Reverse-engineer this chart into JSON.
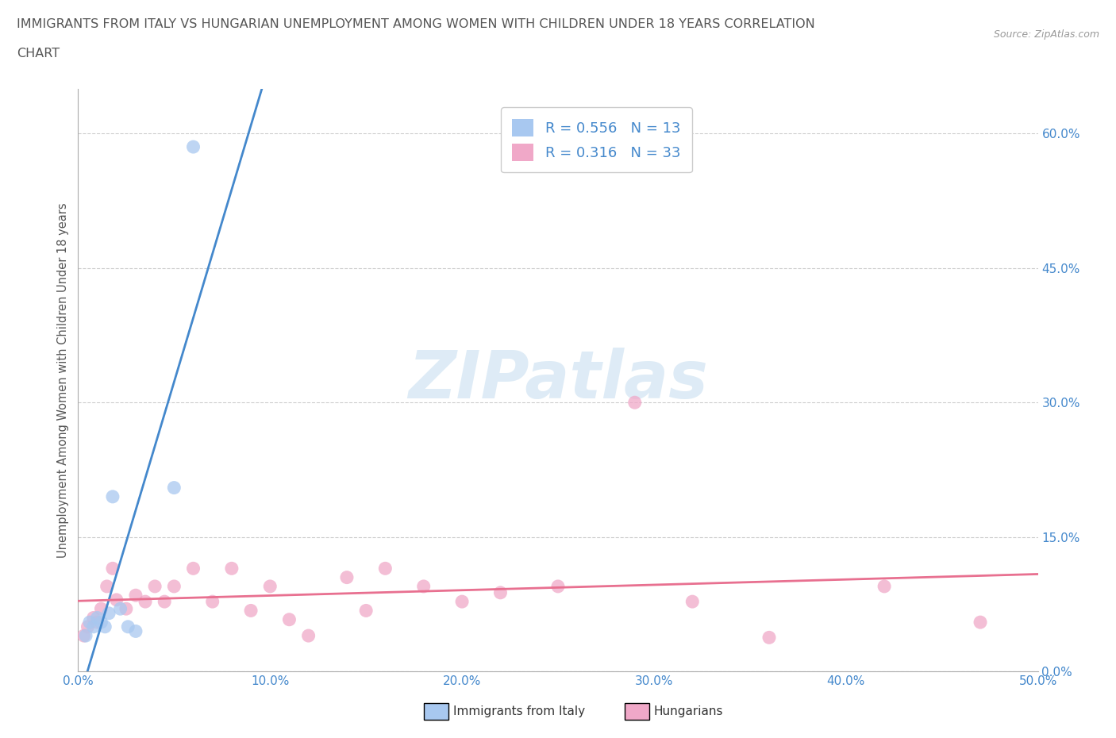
{
  "title_line1": "IMMIGRANTS FROM ITALY VS HUNGARIAN UNEMPLOYMENT AMONG WOMEN WITH CHILDREN UNDER 18 YEARS CORRELATION",
  "title_line2": "CHART",
  "source": "Source: ZipAtlas.com",
  "ylabel": "Unemployment Among Women with Children Under 18 years",
  "xlabel_italy": "Immigrants from Italy",
  "xlabel_hungary": "Hungarians",
  "xlim": [
    0.0,
    0.5
  ],
  "ylim": [
    0.0,
    0.65
  ],
  "xticks": [
    0.0,
    0.1,
    0.2,
    0.3,
    0.4,
    0.5
  ],
  "yticks": [
    0.0,
    0.15,
    0.3,
    0.45,
    0.6
  ],
  "ytick_labels": [
    "0.0%",
    "15.0%",
    "30.0%",
    "45.0%",
    "60.0%"
  ],
  "xtick_labels": [
    "0.0%",
    "10.0%",
    "20.0%",
    "30.0%",
    "40.0%",
    "50.0%"
  ],
  "italy_color": "#a8c8f0",
  "hungary_color": "#f0a8c8",
  "italy_R": 0.556,
  "italy_N": 13,
  "hungary_R": 0.316,
  "hungary_N": 33,
  "background_color": "#ffffff",
  "grid_color": "#cccccc",
  "italy_scatter_x": [
    0.004,
    0.006,
    0.008,
    0.01,
    0.012,
    0.014,
    0.016,
    0.018,
    0.022,
    0.026,
    0.03,
    0.05,
    0.06
  ],
  "italy_scatter_y": [
    0.04,
    0.055,
    0.05,
    0.06,
    0.055,
    0.05,
    0.065,
    0.195,
    0.07,
    0.05,
    0.045,
    0.205,
    0.585
  ],
  "hungary_scatter_x": [
    0.003,
    0.005,
    0.008,
    0.01,
    0.012,
    0.015,
    0.018,
    0.02,
    0.025,
    0.03,
    0.035,
    0.04,
    0.045,
    0.05,
    0.06,
    0.07,
    0.08,
    0.09,
    0.1,
    0.11,
    0.12,
    0.14,
    0.15,
    0.16,
    0.18,
    0.2,
    0.22,
    0.25,
    0.29,
    0.32,
    0.36,
    0.42,
    0.47
  ],
  "hungary_scatter_y": [
    0.04,
    0.05,
    0.06,
    0.055,
    0.07,
    0.095,
    0.115,
    0.08,
    0.07,
    0.085,
    0.078,
    0.095,
    0.078,
    0.095,
    0.115,
    0.078,
    0.115,
    0.068,
    0.095,
    0.058,
    0.04,
    0.105,
    0.068,
    0.115,
    0.095,
    0.078,
    0.088,
    0.095,
    0.3,
    0.078,
    0.038,
    0.095,
    0.055
  ],
  "italy_line_color": "#4488cc",
  "hungary_line_color": "#e87090",
  "title_color": "#555555",
  "axis_label_color": "#555555",
  "tick_color": "#4488cc",
  "legend_R_color": "#4488cc",
  "watermark_color": "#c8dff0",
  "watermark_text": "ZIPatlas"
}
